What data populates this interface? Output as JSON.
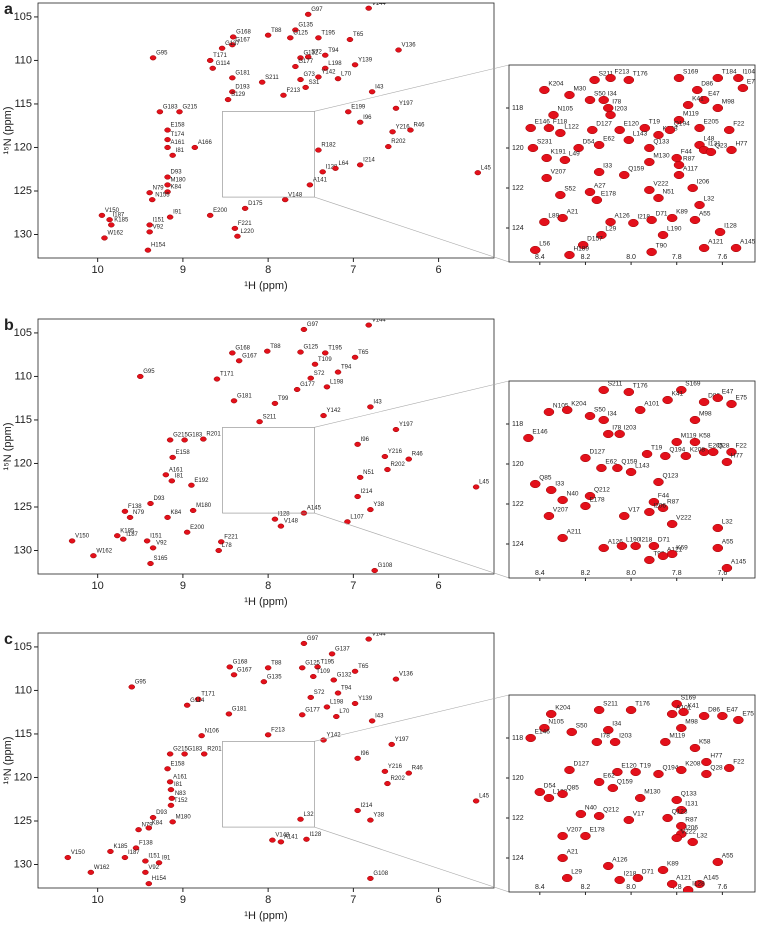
{
  "chart_data": [
    {
      "type": "scatter",
      "panel": "a",
      "xlabel": "¹H (ppm)",
      "ylabel": "¹⁵N (ppm)",
      "color": "#e3101b",
      "xlim": [
        10.7,
        5.35
      ],
      "ylim": [
        103.4,
        132.7
      ],
      "xticks": [
        10,
        9,
        8,
        7,
        6
      ],
      "yticks": [
        105,
        110,
        115,
        120,
        125,
        130
      ],
      "labels": [
        "G97",
        "V144",
        "T65",
        "G135",
        "G125",
        "T195",
        "G168",
        "G167",
        "T88",
        "G137",
        "V136",
        "G95",
        "T171",
        "G114",
        "G132",
        "T94",
        "S72",
        "Y139",
        "L198",
        "Y142",
        "L70",
        "G177",
        "G73",
        "S31",
        "I43",
        "G181",
        "S211",
        "F213",
        "D193",
        "G183",
        "G215",
        "S129",
        "E158",
        "Y197",
        "E199",
        "I96",
        "Y216",
        "R46",
        "R202",
        "L45",
        "T174",
        "A161",
        "I81",
        "A166",
        "D93",
        "M180",
        "K84",
        "N79",
        "N155",
        "V150",
        "I187",
        "K185",
        "W162",
        "H154",
        "V92",
        "I151",
        "I91",
        "E200",
        "F221",
        "L220",
        "A141",
        "V148",
        "I128",
        "L64",
        "I214",
        "R182",
        "D175"
      ],
      "x": [
        7.53,
        6.82,
        7.04,
        7.68,
        7.74,
        7.41,
        8.41,
        8.42,
        8.0,
        8.54,
        6.47,
        9.35,
        8.68,
        8.65,
        7.62,
        7.33,
        7.53,
        6.98,
        7.33,
        7.41,
        7.18,
        7.68,
        7.62,
        7.56,
        6.78,
        8.42,
        8.07,
        7.82,
        8.42,
        9.27,
        9.04,
        8.47,
        9.18,
        6.5,
        7.06,
        6.92,
        6.54,
        6.33,
        6.59,
        5.54,
        9.18,
        9.18,
        9.12,
        8.86,
        9.18,
        9.18,
        9.18,
        9.39,
        9.36,
        9.95,
        9.86,
        9.84,
        9.92,
        9.41,
        9.39,
        9.39,
        9.15,
        8.68,
        8.39,
        8.36,
        7.51,
        7.8,
        7.36,
        7.21,
        6.92,
        7.41,
        8.27
      ],
      "values": [
        104.7,
        104.0,
        107.6,
        106.5,
        107.4,
        107.4,
        107.3,
        108.2,
        107.1,
        108.6,
        108.8,
        109.7,
        110.0,
        110.9,
        109.7,
        109.4,
        109.6,
        110.5,
        110.9,
        111.9,
        112.1,
        110.7,
        112.2,
        113.1,
        113.6,
        112.0,
        112.5,
        114.0,
        113.6,
        115.9,
        115.9,
        114.5,
        118.0,
        115.5,
        115.9,
        117.1,
        118.2,
        118.0,
        119.9,
        122.9,
        119.1,
        120.0,
        120.9,
        120.0,
        123.4,
        124.3,
        125.1,
        125.2,
        126.0,
        127.8,
        128.3,
        128.9,
        130.4,
        131.8,
        129.7,
        128.9,
        128.0,
        127.8,
        129.3,
        130.2,
        124.3,
        126.0,
        122.8,
        122.4,
        122.0,
        120.3,
        127.0
      ]
    },
    {
      "type": "scatter",
      "color": "#e3101b",
      "xlim": [
        8.535,
        7.457
      ],
      "ylim": [
        115.85,
        125.7
      ],
      "xticks": [
        8.4,
        8.2,
        {
          "value": 8,
          "label": "8.0"
        },
        7.8,
        7.6
      ],
      "yticks": [
        118,
        120,
        122,
        124
      ],
      "labels": [
        "K204",
        "M30",
        "S211",
        "F213",
        "T176",
        "S169",
        "T184",
        "I104",
        "E75",
        "D86",
        "E47",
        "K41",
        "M98",
        "N105",
        "E146",
        "I78",
        "I203",
        "M119",
        "S50",
        "I34",
        "E205",
        "F22",
        "K208",
        "T19",
        "Q194",
        "D127",
        "E120",
        "F118",
        "L122",
        "L143",
        "E62",
        "D54",
        "Q133",
        "L48",
        "I131",
        "Q23",
        "H77",
        "S231",
        "K191",
        "L49",
        "F44",
        "R87",
        "M130",
        "I33",
        "Q159",
        "A117",
        "I206",
        "V207",
        "V222",
        "S52",
        "A27",
        "E178",
        "N51",
        "L32",
        "K89",
        "A55",
        "A126",
        "I218",
        "D71",
        "L29",
        "L190",
        "I128",
        "A21",
        "L89",
        "D157",
        "L56",
        "H189",
        "T90",
        "A121",
        "A145"
      ],
      "x": [
        8.38,
        8.27,
        8.16,
        8.09,
        8.01,
        7.79,
        7.62,
        7.53,
        7.51,
        7.71,
        7.68,
        7.75,
        7.62,
        8.34,
        8.44,
        8.1,
        8.09,
        7.79,
        8.18,
        8.12,
        7.7,
        7.57,
        7.88,
        7.94,
        7.83,
        8.17,
        8.05,
        8.36,
        8.31,
        8.01,
        8.14,
        8.23,
        7.92,
        7.7,
        7.68,
        7.65,
        7.56,
        8.43,
        8.37,
        8.29,
        7.8,
        7.79,
        7.92,
        8.14,
        8.03,
        7.79,
        7.73,
        8.37,
        7.92,
        8.31,
        8.18,
        8.15,
        7.88,
        7.7,
        7.82,
        7.72,
        8.09,
        7.99,
        7.91,
        8.13,
        7.86,
        7.61,
        8.3,
        8.38,
        8.21,
        8.42,
        8.27,
        7.91,
        7.68,
        7.54
      ],
      "values": [
        117.1,
        117.35,
        116.6,
        116.5,
        116.6,
        116.5,
        116.5,
        116.5,
        117.0,
        117.1,
        117.6,
        117.85,
        118.0,
        118.35,
        119.0,
        118.0,
        118.35,
        118.6,
        117.6,
        117.6,
        119.0,
        119.1,
        119.35,
        119.0,
        119.1,
        119.1,
        119.1,
        119.0,
        119.25,
        119.6,
        119.85,
        120.0,
        120.0,
        119.85,
        120.1,
        120.2,
        120.1,
        120.0,
        120.5,
        120.6,
        120.5,
        120.85,
        120.7,
        121.2,
        121.35,
        121.35,
        122.0,
        121.5,
        122.1,
        122.35,
        122.2,
        122.6,
        122.5,
        122.85,
        123.5,
        123.6,
        123.7,
        123.75,
        123.6,
        124.35,
        124.35,
        124.2,
        123.5,
        123.7,
        124.85,
        125.1,
        125.35,
        125.2,
        125.0,
        125.0
      ]
    },
    {
      "type": "scatter",
      "panel": "b",
      "xlabel": "¹H (ppm)",
      "ylabel": "¹⁵N (ppm)",
      "color": "#e3101b",
      "xlim": [
        10.7,
        5.35
      ],
      "ylim": [
        103.4,
        132.7
      ],
      "xticks": [
        10,
        9,
        8,
        7,
        6
      ],
      "yticks": [
        105,
        110,
        115,
        120,
        125,
        130
      ],
      "labels": [
        "G97",
        "V144",
        "G168",
        "G167",
        "T88",
        "G125",
        "T195",
        "T109",
        "T65",
        "G95",
        "T171",
        "G177",
        "S72",
        "T94",
        "L198",
        "G181",
        "T99",
        "I43",
        "Y142",
        "S211",
        "G215",
        "G183",
        "R201",
        "E158",
        "Y197",
        "I96",
        "Y216",
        "R46",
        "R202",
        "A161",
        "I81",
        "E192",
        "D93",
        "M180",
        "F138",
        "N79",
        "K84",
        "L45",
        "Y38",
        "K185",
        "I187",
        "V150",
        "I151",
        "V92",
        "W162",
        "S165",
        "G108",
        "E200",
        "F221",
        "L78",
        "V148",
        "A145",
        "I128",
        "I214",
        "N51",
        "L107"
      ],
      "x": [
        7.58,
        6.82,
        8.42,
        8.34,
        8.01,
        7.62,
        7.33,
        7.45,
        6.98,
        9.5,
        8.6,
        7.66,
        7.5,
        7.18,
        7.31,
        8.4,
        7.92,
        6.8,
        7.35,
        8.1,
        9.15,
        8.98,
        8.76,
        9.12,
        6.5,
        6.95,
        6.63,
        6.35,
        6.6,
        9.2,
        9.13,
        8.9,
        9.38,
        8.88,
        9.68,
        9.62,
        9.18,
        5.56,
        6.8,
        9.77,
        9.7,
        10.3,
        9.42,
        9.35,
        10.05,
        9.38,
        6.75,
        8.95,
        8.55,
        8.58,
        7.85,
        7.58,
        7.92,
        6.95,
        6.92,
        7.07
      ],
      "values": [
        104.6,
        104.1,
        107.3,
        108.2,
        107.1,
        107.2,
        107.3,
        108.6,
        107.8,
        110.0,
        110.3,
        111.5,
        110.2,
        109.5,
        111.2,
        112.8,
        113.1,
        113.5,
        114.5,
        115.2,
        117.3,
        117.3,
        117.2,
        119.3,
        116.1,
        117.8,
        119.2,
        119.5,
        120.7,
        121.3,
        122.0,
        122.5,
        124.6,
        125.4,
        125.5,
        126.2,
        126.2,
        122.7,
        125.3,
        128.3,
        128.7,
        128.9,
        128.9,
        129.7,
        130.6,
        131.5,
        132.3,
        127.9,
        129.0,
        130.0,
        127.2,
        125.7,
        126.4,
        123.8,
        121.6,
        126.7
      ]
    },
    {
      "type": "scatter",
      "color": "#e3101b",
      "xlim": [
        8.535,
        7.457
      ],
      "ylim": [
        115.85,
        125.7
      ],
      "xticks": [
        8.4,
        8.2,
        {
          "value": 8,
          "label": "8.0"
        },
        7.8,
        7.6
      ],
      "yticks": [
        118,
        120,
        122,
        124
      ],
      "labels": [
        "S211",
        "T176",
        "S169",
        "K41",
        "D86",
        "E47",
        "E75",
        "N105",
        "K204",
        "S50",
        "I34",
        "A101",
        "M98",
        "E146",
        "I78",
        "I203",
        "M119",
        "K58",
        "E205",
        "Q28",
        "F22",
        "H77",
        "D127",
        "T19",
        "Q194",
        "K208",
        "E62",
        "Q159",
        "L143",
        "Q123",
        "Q85",
        "I33",
        "N40",
        "Q212",
        "E178",
        "F44",
        "R87",
        "V207",
        "V17",
        "I206",
        "V222",
        "L32",
        "A211",
        "A126",
        "L190",
        "I218",
        "D71",
        "T90",
        "A121",
        "A55",
        "K69",
        "A145"
      ],
      "x": [
        8.12,
        8.01,
        7.78,
        7.84,
        7.68,
        7.62,
        7.56,
        8.36,
        8.28,
        8.18,
        8.12,
        7.96,
        7.72,
        8.45,
        8.1,
        8.05,
        7.8,
        7.72,
        7.68,
        7.64,
        7.56,
        7.58,
        8.2,
        7.93,
        7.85,
        7.76,
        8.13,
        8.06,
        8.0,
        7.88,
        8.42,
        8.35,
        8.3,
        8.18,
        8.2,
        7.9,
        7.86,
        8.36,
        8.03,
        7.92,
        7.82,
        7.62,
        8.3,
        8.12,
        8.04,
        7.98,
        7.9,
        7.92,
        7.86,
        7.62,
        7.82,
        7.58
      ],
      "values": [
        116.3,
        116.4,
        116.3,
        116.8,
        116.9,
        116.7,
        117.0,
        117.4,
        117.3,
        117.6,
        117.8,
        117.3,
        117.8,
        118.7,
        118.5,
        118.5,
        118.9,
        118.9,
        119.4,
        119.4,
        119.4,
        119.9,
        119.7,
        119.5,
        119.6,
        119.6,
        120.2,
        120.2,
        120.4,
        120.9,
        121.0,
        121.3,
        121.8,
        121.6,
        122.1,
        121.9,
        122.2,
        122.6,
        122.6,
        122.4,
        123.0,
        123.2,
        123.7,
        124.2,
        124.1,
        124.1,
        124.1,
        124.8,
        124.6,
        124.2,
        124.5,
        125.2
      ]
    },
    {
      "type": "scatter",
      "panel": "c",
      "xlabel": "¹H (ppm)",
      "ylabel": "¹⁵N (ppm)",
      "color": "#e3101b",
      "xlim": [
        10.7,
        5.35
      ],
      "ylim": [
        103.4,
        132.7
      ],
      "xticks": [
        10,
        9,
        8,
        7,
        6
      ],
      "yticks": [
        105,
        110,
        115,
        120,
        125,
        130
      ],
      "labels": [
        "G97",
        "V144",
        "G137",
        "T65",
        "G125",
        "T195",
        "T109",
        "G132",
        "G168",
        "G167",
        "T88",
        "G135",
        "V136",
        "G95",
        "T171",
        "G114",
        "G181",
        "S72",
        "T94",
        "Y139",
        "L198",
        "I43",
        "G177",
        "L70",
        "N106",
        "F213",
        "Y142",
        "G215",
        "G183",
        "R201",
        "E158",
        "Y197",
        "I96",
        "Y216",
        "R46",
        "R202",
        "A161",
        "I81",
        "N83",
        "T152",
        "D93",
        "M180",
        "N79",
        "K84",
        "F138",
        "L45",
        "Y38",
        "V150",
        "K185",
        "I187",
        "I151",
        "I91",
        "W162",
        "V92",
        "H154",
        "G108",
        "A141",
        "V148",
        "I128",
        "L32",
        "I214"
      ],
      "x": [
        7.58,
        6.82,
        7.25,
        6.98,
        7.6,
        7.42,
        7.47,
        7.23,
        8.45,
        8.4,
        8.0,
        8.05,
        6.5,
        9.6,
        8.82,
        8.95,
        8.46,
        7.5,
        7.18,
        6.98,
        7.31,
        6.78,
        7.6,
        7.2,
        8.78,
        8.0,
        7.35,
        9.15,
        8.98,
        8.75,
        9.18,
        6.55,
        6.95,
        6.63,
        6.35,
        6.6,
        9.15,
        9.14,
        9.13,
        9.14,
        9.35,
        9.12,
        9.52,
        9.4,
        9.55,
        5.56,
        6.8,
        10.35,
        9.85,
        9.68,
        9.44,
        9.28,
        10.08,
        9.44,
        9.4,
        6.8,
        7.85,
        7.95,
        7.55,
        7.62,
        6.95
      ],
      "values": [
        104.6,
        104.1,
        105.8,
        107.8,
        107.4,
        107.3,
        108.4,
        108.8,
        107.3,
        108.2,
        107.4,
        109.0,
        108.7,
        109.6,
        111.0,
        111.7,
        112.7,
        110.8,
        110.3,
        111.5,
        111.9,
        113.5,
        112.8,
        113.0,
        115.2,
        115.1,
        115.7,
        117.3,
        117.3,
        117.3,
        119.0,
        116.2,
        117.8,
        119.3,
        119.5,
        120.7,
        120.5,
        121.4,
        122.4,
        123.2,
        124.6,
        125.1,
        126.0,
        125.8,
        128.1,
        122.7,
        124.9,
        129.2,
        128.5,
        129.2,
        129.6,
        129.8,
        130.9,
        130.9,
        132.2,
        131.6,
        127.4,
        127.2,
        127.1,
        124.8,
        123.8
      ]
    },
    {
      "type": "scatter",
      "color": "#e3101b",
      "xlim": [
        8.535,
        7.457
      ],
      "ylim": [
        115.85,
        125.7
      ],
      "xticks": [
        8.4,
        8.2,
        {
          "value": 8,
          "label": "8.0"
        },
        7.8,
        7.6
      ],
      "yticks": [
        118,
        120,
        122,
        124
      ],
      "labels": [
        "K204",
        "S211",
        "T176",
        "S169",
        "A101",
        "K41",
        "D86",
        "E47",
        "E75",
        "N105",
        "S50",
        "I34",
        "M98",
        "E146",
        "I78",
        "I203",
        "M119",
        "K58",
        "H77",
        "F22",
        "Q28",
        "D127",
        "E120",
        "T19",
        "Q194",
        "K208",
        "E62",
        "Q159",
        "D54",
        "L122",
        "Q85",
        "M130",
        "Q133",
        "I131",
        "N40",
        "Q212",
        "V17",
        "Q123",
        "R87",
        "I206",
        "V207",
        "E178",
        "V222",
        "L32",
        "A21",
        "A126",
        "A55",
        "K89",
        "L29",
        "I218",
        "D71",
        "A121",
        "A145",
        "I128"
      ],
      "x": [
        8.35,
        8.14,
        8.0,
        7.8,
        7.82,
        7.77,
        7.68,
        7.6,
        7.53,
        8.38,
        8.26,
        8.1,
        7.78,
        8.44,
        8.15,
        8.07,
        7.85,
        7.72,
        7.67,
        7.57,
        7.67,
        8.27,
        8.06,
        7.98,
        7.88,
        7.78,
        8.14,
        8.08,
        8.4,
        8.36,
        8.3,
        7.96,
        7.8,
        7.78,
        8.22,
        8.14,
        8.01,
        7.84,
        7.78,
        7.78,
        8.3,
        8.2,
        7.8,
        7.73,
        8.3,
        8.1,
        7.62,
        7.86,
        8.28,
        8.05,
        7.97,
        7.82,
        7.7,
        7.75
      ],
      "values": [
        116.8,
        116.6,
        116.6,
        116.3,
        116.8,
        116.7,
        116.9,
        116.9,
        117.1,
        117.5,
        117.7,
        117.6,
        117.5,
        118.0,
        118.2,
        118.2,
        118.2,
        118.5,
        119.2,
        119.5,
        119.8,
        119.6,
        119.7,
        119.7,
        119.8,
        119.6,
        120.2,
        120.5,
        120.7,
        121.0,
        120.8,
        121.0,
        121.1,
        121.6,
        121.8,
        121.9,
        122.1,
        122.0,
        122.4,
        122.8,
        122.9,
        122.9,
        123.0,
        123.2,
        124.0,
        124.4,
        124.2,
        124.6,
        125.0,
        125.1,
        125.0,
        125.3,
        125.3,
        125.6
      ]
    }
  ]
}
